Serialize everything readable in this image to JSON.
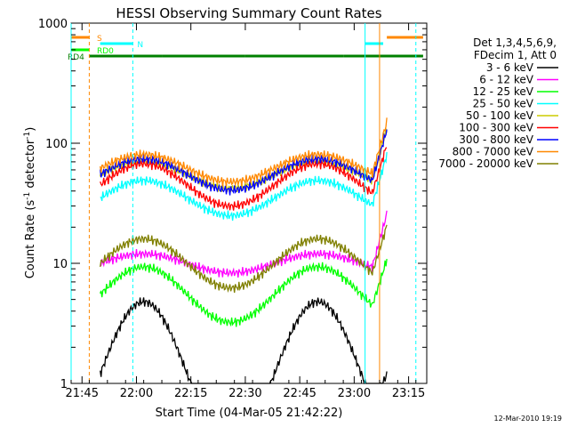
{
  "chart_data": {
    "type": "line",
    "title": "HESSI Observing Summary Count Rates",
    "xlabel": "Start Time (04-Mar-05 21:42:22)",
    "ylabel_main": "Count Rate (s",
    "ylabel_sup1": "-1",
    "ylabel_mid": " detector",
    "ylabel_sup2": "-1",
    "ylabel_end": ")",
    "yscale": "log",
    "xlim": [
      "21:42",
      "23:20"
    ],
    "ylim": [
      1,
      1000
    ],
    "x_ticks": [
      "21:45",
      "22:00",
      "22:15",
      "22:30",
      "22:45",
      "23:00",
      "23:15"
    ],
    "y_ticks": [
      "1",
      "10",
      "100",
      "1000"
    ],
    "legend_header": [
      "Det 1,3,4,5,6,9,",
      "FDecim 1, Att 0"
    ],
    "timestamp": "12-Mar-2010 19:19",
    "series": [
      {
        "name": "3 - 6 keV",
        "color": "#000000"
      },
      {
        "name": "6 - 12 keV",
        "color": "#ff00ff"
      },
      {
        "name": "12 - 25 keV",
        "color": "#00ff00"
      },
      {
        "name": "25 - 50 keV",
        "color": "#00ffff"
      },
      {
        "name": "50 - 100 keV",
        "color": "#cccc00"
      },
      {
        "name": "100 - 300 keV",
        "color": "#ff0000"
      },
      {
        "name": "300 - 800 keV",
        "color": "#0000ff"
      },
      {
        "name": "800 - 7000 keV",
        "color": "#ff8800"
      },
      {
        "name": "7000 - 20000 keV",
        "color": "#808000"
      }
    ],
    "flag_bars": [
      {
        "label": "S",
        "color": "#ff8800",
        "segments": [
          [
            "21:42",
            "21:47"
          ],
          [
            "23:09",
            "23:19"
          ]
        ]
      },
      {
        "label": "N",
        "color": "#00ffff",
        "segments": [
          [
            "21:42",
            "21:42"
          ],
          [
            "21:50",
            "21:59"
          ],
          [
            "23:03",
            "23:08"
          ]
        ]
      },
      {
        "label": "RD0",
        "color": "#00ff00",
        "segments": [
          [
            "21:42",
            "21:47"
          ]
        ]
      },
      {
        "label": "RD4",
        "color": "#008000",
        "segments": [
          [
            "21:47",
            "22:07"
          ],
          [
            "22:07",
            "22:30"
          ],
          [
            "22:30",
            "22:57"
          ],
          [
            "22:57",
            "23:19"
          ]
        ]
      }
    ]
  }
}
